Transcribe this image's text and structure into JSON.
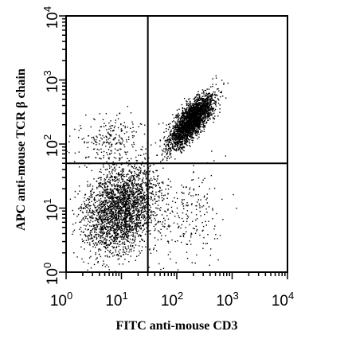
{
  "chart_data": {
    "type": "scatter",
    "title": "",
    "xlabel": "FITC anti-mouse CD3",
    "ylabel": "APC anti-mouse TCR β chain",
    "xscale": "log",
    "yscale": "log",
    "xlim": [
      1,
      10000
    ],
    "ylim": [
      1,
      10000
    ],
    "xticks": [
      {
        "base": "10",
        "exp": "0"
      },
      {
        "base": "10",
        "exp": "1"
      },
      {
        "base": "10",
        "exp": "2"
      },
      {
        "base": "10",
        "exp": "3"
      },
      {
        "base": "10",
        "exp": "4"
      }
    ],
    "yticks": [
      {
        "base": "10",
        "exp": "0"
      },
      {
        "base": "10",
        "exp": "1"
      },
      {
        "base": "10",
        "exp": "2"
      },
      {
        "base": "10",
        "exp": "3"
      },
      {
        "base": "10",
        "exp": "4"
      }
    ],
    "quadrant_gates": {
      "x": 30,
      "y": 50
    },
    "grid": false,
    "legend": "none",
    "marker_color": "#000000",
    "populations": [
      {
        "x_center": 10,
        "y_center": 10,
        "x_spread": [
          1,
          30
        ],
        "y_spread": [
          1,
          40
        ],
        "density": "high"
      },
      {
        "x_center": 180,
        "y_center": 240,
        "x_spread": [
          60,
          500
        ],
        "y_spread": [
          80,
          700
        ],
        "density": "high"
      },
      {
        "x_center": 6,
        "y_center": 120,
        "x_spread": [
          1,
          30
        ],
        "y_spread": [
          50,
          400
        ],
        "density": "sparse"
      },
      {
        "x_center": 150,
        "y_center": 8,
        "x_spread": [
          30,
          900
        ],
        "y_spread": [
          1,
          50
        ],
        "density": "sparse"
      }
    ]
  }
}
